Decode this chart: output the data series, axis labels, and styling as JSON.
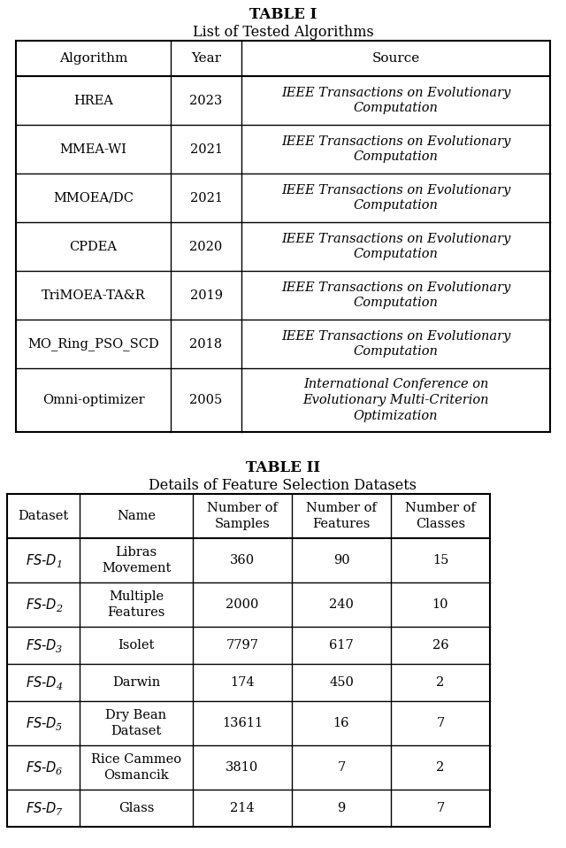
{
  "table1_title": "TABLE I",
  "table1_subtitle": "List of Tested Algorithms",
  "table1_headers": [
    "Algorithm",
    "Year",
    "Source"
  ],
  "table1_rows": [
    [
      "HREA",
      "2023",
      "IEEE Transactions on Evolutionary\nComputation"
    ],
    [
      "MMEA-WI",
      "2021",
      "IEEE Transactions on Evolutionary\nComputation"
    ],
    [
      "MMOEA/DC",
      "2021",
      "IEEE Transactions on Evolutionary\nComputation"
    ],
    [
      "CPDEA",
      "2020",
      "IEEE Transactions on Evolutionary\nComputation"
    ],
    [
      "TriMOEA-TA&R",
      "2019",
      "IEEE Transactions on Evolutionary\nComputation"
    ],
    [
      "MO_Ring_PSO_SCD",
      "2018",
      "IEEE Transactions on Evolutionary\nComputation"
    ],
    [
      "Omni-optimizer",
      "2005",
      "International Conference on\nEvolutionary Multi-Criterion\nOptimization"
    ]
  ],
  "table2_title": "TABLE II",
  "table2_subtitle": "Details of Feature Selection Datasets",
  "table2_headers": [
    "Dataset",
    "Name",
    "Number of\nSamples",
    "Number of\nFeatures",
    "Number of\nClasses"
  ],
  "table2_rows": [
    [
      "FS-D",
      "1",
      "Libras\nMovement",
      "360",
      "90",
      "15"
    ],
    [
      "FS-D",
      "2",
      "Multiple\nFeatures",
      "2000",
      "240",
      "10"
    ],
    [
      "FS-D",
      "3",
      "Isolet",
      "7797",
      "617",
      "26"
    ],
    [
      "FS-D",
      "4",
      "Darwin",
      "174",
      "450",
      "2"
    ],
    [
      "FS-D",
      "5",
      "Dry Bean\nDataset",
      "13611",
      "16",
      "7"
    ],
    [
      "FS-D",
      "6",
      "Rice Cammeo\nOsmancik",
      "3810",
      "7",
      "2"
    ],
    [
      "FS-D",
      "7",
      "Glass",
      "214",
      "9",
      "7"
    ]
  ],
  "background_color": "#ffffff",
  "line_color": "#000000",
  "text_color": "#000000"
}
